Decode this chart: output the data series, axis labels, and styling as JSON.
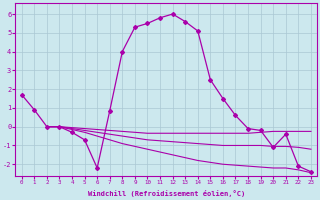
{
  "xlabel": "Windchill (Refroidissement éolien,°C)",
  "x_ticks": [
    0,
    1,
    2,
    3,
    4,
    5,
    6,
    7,
    8,
    9,
    10,
    11,
    12,
    13,
    14,
    15,
    16,
    17,
    18,
    19,
    20,
    21,
    22,
    23
  ],
  "ylim": [
    -2.6,
    6.6
  ],
  "xlim": [
    -0.5,
    23.5
  ],
  "yticks": [
    -2,
    -1,
    0,
    1,
    2,
    3,
    4,
    5,
    6
  ],
  "bg_color": "#cce8ee",
  "grid_color": "#aac8d4",
  "line_color": "#aa00aa",
  "curve_main": [
    1.7,
    0.9,
    0.0,
    0.0,
    -0.3,
    -0.7,
    -2.2,
    0.85,
    4.0,
    5.3,
    5.5,
    5.8,
    6.0,
    5.6,
    5.1,
    2.5,
    1.5,
    0.6,
    -0.1,
    -0.2,
    -1.1,
    -0.4,
    -2.1,
    -2.4
  ],
  "curve_flat1_x": [
    2,
    3,
    4,
    5,
    6,
    7,
    8,
    9,
    10,
    11,
    12,
    13,
    14,
    15,
    16,
    17,
    18,
    19,
    20,
    21,
    22,
    23
  ],
  "curve_flat1_y": [
    0.0,
    0.0,
    -0.05,
    -0.1,
    -0.15,
    -0.2,
    -0.25,
    -0.3,
    -0.35,
    -0.35,
    -0.35,
    -0.35,
    -0.35,
    -0.35,
    -0.35,
    -0.35,
    -0.35,
    -0.3,
    -0.25,
    -0.25,
    -0.25,
    -0.25
  ],
  "curve_flat2_x": [
    2,
    3,
    4,
    5,
    6,
    7,
    8,
    9,
    10,
    11,
    12,
    13,
    14,
    15,
    16,
    17,
    18,
    19,
    20,
    21,
    22,
    23
  ],
  "curve_flat2_y": [
    0.0,
    0.0,
    -0.1,
    -0.2,
    -0.3,
    -0.4,
    -0.5,
    -0.6,
    -0.7,
    -0.75,
    -0.8,
    -0.85,
    -0.9,
    -0.95,
    -1.0,
    -1.0,
    -1.0,
    -1.0,
    -1.05,
    -1.05,
    -1.1,
    -1.2
  ],
  "curve_flat3_x": [
    2,
    3,
    4,
    5,
    6,
    7,
    8,
    9,
    10,
    11,
    12,
    13,
    14,
    15,
    16,
    17,
    18,
    19,
    20,
    21,
    22,
    23
  ],
  "curve_flat3_y": [
    0.0,
    0.0,
    -0.15,
    -0.3,
    -0.5,
    -0.7,
    -0.9,
    -1.05,
    -1.2,
    -1.35,
    -1.5,
    -1.65,
    -1.8,
    -1.9,
    -2.0,
    -2.05,
    -2.1,
    -2.15,
    -2.2,
    -2.2,
    -2.3,
    -2.45
  ]
}
